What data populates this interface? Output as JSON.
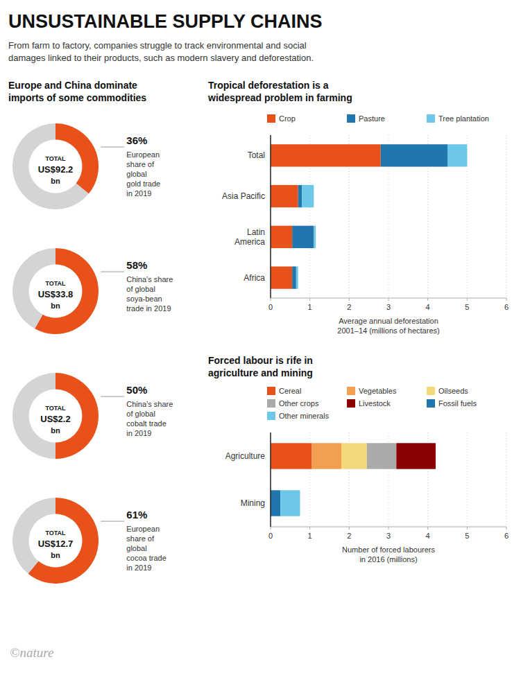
{
  "title": "UNSUSTAINABLE SUPPLY CHAINS",
  "subtitle": "From farm to factory, companies struggle to track environmental and social\ndamages linked to their products, such as modern slavery and deforestation.",
  "annotations": [
    "©nature"
  ],
  "chart_data": [
    {
      "type": "pie",
      "title": "Europe and China dominate\nimports of some commodities",
      "values": [
        36,
        64
      ],
      "colors": [
        "#E8511A",
        "#D4D4D4"
      ],
      "data_labels": true,
      "value_labels": [
        "36%",
        null
      ],
      "annotations": [
        "TOTAL",
        "US$92.2",
        "bn",
        "European\nshare of\nglobal\ngold trade\nin 2019"
      ]
    },
    {
      "type": "pie",
      "values": [
        58,
        42
      ],
      "colors": [
        "#E8511A",
        "#D4D4D4"
      ],
      "data_labels": true,
      "value_labels": [
        "58%",
        null
      ],
      "annotations": [
        "TOTAL",
        "US$33.8",
        "bn",
        "China’s share\nof global\nsoya-bean\ntrade in 2019"
      ]
    },
    {
      "type": "pie",
      "values": [
        50,
        50
      ],
      "colors": [
        "#E8511A",
        "#D4D4D4"
      ],
      "data_labels": true,
      "value_labels": [
        "50%",
        null
      ],
      "annotations": [
        "TOTAL",
        "US$2.2",
        "bn",
        "China’s share\nof global\ncobalt trade\nin 2019"
      ]
    },
    {
      "type": "pie",
      "values": [
        61,
        39
      ],
      "colors": [
        "#E8511A",
        "#D4D4D4"
      ],
      "data_labels": true,
      "value_labels": [
        "61%",
        null
      ],
      "annotations": [
        "TOTAL",
        "US$12.7",
        "bn",
        "European\nshare of\nglobal\ncocoa trade\nin 2019"
      ]
    },
    {
      "type": "bar",
      "orientation": "horizontal",
      "stacked": true,
      "title": "Tropical deforestation is a\nwidespread problem in farming",
      "categories": [
        "Total",
        "Asia Pacific",
        "Latin\nAmerica",
        "Africa"
      ],
      "series": [
        {
          "name": "Crop",
          "color": "#E8511A",
          "values": [
            2.8,
            0.7,
            0.55,
            0.55
          ]
        },
        {
          "name": "Pasture",
          "color": "#2176AE",
          "values": [
            1.7,
            0.1,
            0.55,
            0.1
          ]
        },
        {
          "name": "Tree plantation",
          "color": "#6EC6E8",
          "values": [
            0.5,
            0.3,
            0.05,
            0.05
          ]
        }
      ],
      "xlabel": "Average annual deforestation\n2001–14 (millions of hectares)",
      "xlim": [
        0,
        6
      ],
      "xticks": [
        0,
        1,
        2,
        3,
        4,
        5,
        6
      ],
      "grid": true,
      "legend": "upper right"
    },
    {
      "type": "bar",
      "orientation": "horizontal",
      "stacked": true,
      "title": "Forced labour is rife in\nagriculture and mining",
      "categories": [
        "Agriculture",
        "Mining"
      ],
      "series": [
        {
          "name": "Cereal",
          "color": "#E8511A",
          "values": [
            1.05,
            0.0
          ]
        },
        {
          "name": "Vegetables",
          "color": "#F0A050",
          "values": [
            0.75,
            0.0
          ]
        },
        {
          "name": "Oilseeds",
          "color": "#F5D87A",
          "values": [
            0.65,
            0.0
          ]
        },
        {
          "name": "Other crops",
          "color": "#AAAAAA",
          "values": [
            0.75,
            0.0
          ]
        },
        {
          "name": "Livestock",
          "color": "#8B0000",
          "values": [
            1.0,
            0.0
          ]
        },
        {
          "name": "Fossil fuels",
          "color": "#2176AE",
          "values": [
            0.0,
            0.25
          ]
        },
        {
          "name": "Other minerals",
          "color": "#6EC6E8",
          "values": [
            0.0,
            0.5
          ]
        }
      ],
      "xlabel": "Number of forced labourers\nin 2016 (millions)",
      "xlim": [
        0,
        6
      ],
      "xticks": [
        0,
        1,
        2,
        3,
        4,
        5,
        6
      ],
      "grid": true,
      "legend": "upper right"
    }
  ]
}
